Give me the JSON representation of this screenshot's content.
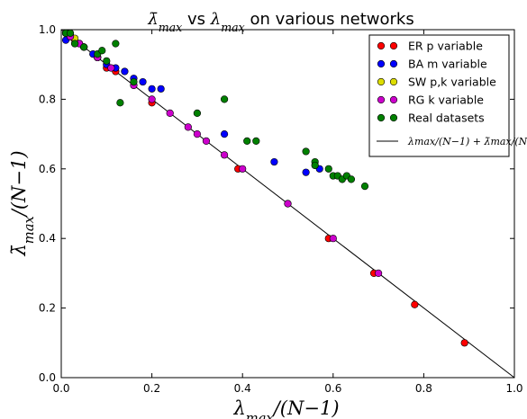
{
  "chart_data": {
    "type": "scatter",
    "title": "λ̄max vs λmax on various networks",
    "xlabel": "λmax/(N−1)",
    "ylabel": "λ̄max/(N−1)",
    "xlim": [
      0,
      1
    ],
    "ylim": [
      0,
      1
    ],
    "xticks": [
      "0.0",
      "0.2",
      "0.4",
      "0.6",
      "0.8",
      "1.0"
    ],
    "yticks": [
      "0.0",
      "0.2",
      "0.4",
      "0.6",
      "0.8",
      "1.0"
    ],
    "grid": false,
    "legend_position": "top-right",
    "series": [
      {
        "name": "ER p variable",
        "color": "#ff0000",
        "points": [
          [
            0.01,
            0.99
          ],
          [
            0.02,
            0.98
          ],
          [
            0.03,
            0.97
          ],
          [
            0.04,
            0.96
          ],
          [
            0.05,
            0.95
          ],
          [
            0.08,
            0.92
          ],
          [
            0.1,
            0.89
          ],
          [
            0.12,
            0.88
          ],
          [
            0.2,
            0.79
          ],
          [
            0.39,
            0.6
          ],
          [
            0.5,
            0.5
          ],
          [
            0.59,
            0.4
          ],
          [
            0.69,
            0.3
          ],
          [
            0.78,
            0.21
          ],
          [
            0.89,
            0.1
          ]
        ]
      },
      {
        "name": "BA m variable",
        "color": "#0000ff",
        "points": [
          [
            0.01,
            0.97
          ],
          [
            0.02,
            0.98
          ],
          [
            0.03,
            0.96
          ],
          [
            0.05,
            0.95
          ],
          [
            0.07,
            0.93
          ],
          [
            0.08,
            0.92
          ],
          [
            0.1,
            0.9
          ],
          [
            0.12,
            0.89
          ],
          [
            0.14,
            0.88
          ],
          [
            0.16,
            0.86
          ],
          [
            0.18,
            0.85
          ],
          [
            0.2,
            0.83
          ],
          [
            0.22,
            0.83
          ],
          [
            0.36,
            0.7
          ],
          [
            0.47,
            0.62
          ],
          [
            0.54,
            0.59
          ],
          [
            0.57,
            0.6
          ]
        ]
      },
      {
        "name": "SW p,k variable",
        "color": "#dddd00",
        "points": [
          [
            0.01,
            0.99
          ],
          [
            0.02,
            0.985
          ],
          [
            0.03,
            0.975
          ],
          [
            0.04,
            0.96
          ]
        ]
      },
      {
        "name": "RG k variable",
        "color": "#cc00cc",
        "points": [
          [
            0.02,
            0.98
          ],
          [
            0.04,
            0.96
          ],
          [
            0.08,
            0.92
          ],
          [
            0.11,
            0.89
          ],
          [
            0.16,
            0.84
          ],
          [
            0.2,
            0.8
          ],
          [
            0.24,
            0.76
          ],
          [
            0.28,
            0.72
          ],
          [
            0.3,
            0.7
          ],
          [
            0.32,
            0.68
          ],
          [
            0.36,
            0.64
          ],
          [
            0.4,
            0.6
          ],
          [
            0.5,
            0.5
          ],
          [
            0.6,
            0.4
          ],
          [
            0.7,
            0.3
          ]
        ]
      },
      {
        "name": "Real datasets",
        "color": "#008000",
        "points": [
          [
            0.01,
            0.99
          ],
          [
            0.02,
            0.99
          ],
          [
            0.03,
            0.96
          ],
          [
            0.05,
            0.95
          ],
          [
            0.08,
            0.93
          ],
          [
            0.09,
            0.94
          ],
          [
            0.1,
            0.91
          ],
          [
            0.12,
            0.96
          ],
          [
            0.13,
            0.79
          ],
          [
            0.16,
            0.85
          ],
          [
            0.3,
            0.76
          ],
          [
            0.36,
            0.8
          ],
          [
            0.41,
            0.68
          ],
          [
            0.43,
            0.68
          ],
          [
            0.54,
            0.65
          ],
          [
            0.56,
            0.62
          ],
          [
            0.56,
            0.61
          ],
          [
            0.59,
            0.6
          ],
          [
            0.6,
            0.58
          ],
          [
            0.61,
            0.58
          ],
          [
            0.62,
            0.57
          ],
          [
            0.63,
            0.58
          ],
          [
            0.64,
            0.57
          ],
          [
            0.67,
            0.55
          ]
        ]
      }
    ],
    "reference_line": {
      "label": "λmax/(N−1) + λ̄max/(N−1) = 1",
      "color": "#000000",
      "points": [
        [
          0,
          1
        ],
        [
          1,
          0
        ]
      ]
    }
  }
}
